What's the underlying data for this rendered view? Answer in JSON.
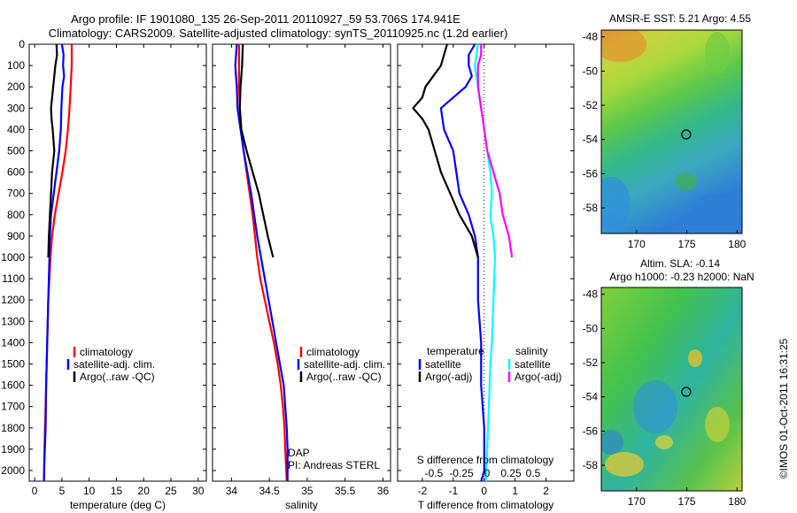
{
  "title_line1": "Argo profile: IF 1901080_135 26-Sep-2011 20110927_59 53.706S 174.941E",
  "title_line2": "Climatology: CARS2009. Satellite-adjusted climatology: synTS_20110925.nc (1.2d earlier)",
  "footer_stamp": "©IMOS 01-Oct-2011 16:31:25",
  "colors": {
    "climatology": "#ff0000",
    "satellite": "#0000ff",
    "argo": "#000000",
    "salinity_satellite": "#00ffff",
    "salinity_argo": "#ff00ff"
  },
  "depth_axis": {
    "ylim": [
      0,
      2050
    ],
    "ticks": [
      0,
      100,
      200,
      300,
      400,
      500,
      600,
      700,
      800,
      900,
      1000,
      1100,
      1200,
      1300,
      1400,
      1500,
      1600,
      1700,
      1800,
      1900,
      2000
    ],
    "inverted": true
  },
  "chart_data": [
    {
      "type": "line",
      "id": "temperature",
      "xlabel": "temperature (deg C)",
      "xlim": [
        -1,
        31.5
      ],
      "xticks": [
        0,
        5,
        10,
        15,
        20,
        25,
        30
      ],
      "legend_position": "lower-right",
      "series": [
        {
          "name": "climatology",
          "color": "#ff0000",
          "points": [
            [
              6.8,
              0
            ],
            [
              6.8,
              100
            ],
            [
              6.6,
              200
            ],
            [
              6.4,
              300
            ],
            [
              6.1,
              400
            ],
            [
              5.7,
              500
            ],
            [
              5.1,
              600
            ],
            [
              4.4,
              700
            ],
            [
              3.7,
              800
            ],
            [
              3.2,
              900
            ],
            [
              2.9,
              1000
            ],
            [
              2.7,
              1100
            ],
            [
              2.5,
              1200
            ],
            [
              2.4,
              1300
            ],
            [
              2.3,
              1400
            ],
            [
              2.2,
              1500
            ],
            [
              2.1,
              1600
            ],
            [
              2.0,
              1700
            ],
            [
              1.9,
              1800
            ],
            [
              1.8,
              1900
            ],
            [
              1.7,
              2050
            ]
          ]
        },
        {
          "name": "satellite-adj. clim.",
          "color": "#0000ff",
          "points": [
            [
              5.0,
              0
            ],
            [
              5.3,
              50
            ],
            [
              5.2,
              100
            ],
            [
              5.4,
              150
            ],
            [
              5.1,
              200
            ],
            [
              5.0,
              250
            ],
            [
              4.9,
              300
            ],
            [
              4.8,
              400
            ],
            [
              4.5,
              500
            ],
            [
              4.0,
              600
            ],
            [
              3.5,
              700
            ],
            [
              3.0,
              800
            ],
            [
              2.8,
              900
            ],
            [
              2.7,
              1000
            ],
            [
              2.5,
              1200
            ],
            [
              2.3,
              1400
            ],
            [
              2.1,
              1600
            ],
            [
              2.0,
              1800
            ],
            [
              1.8,
              1950
            ],
            [
              1.7,
              2050
            ]
          ]
        },
        {
          "name": "Argo(..raw -QC)",
          "color": "#000000",
          "points": [
            [
              4.0,
              0
            ],
            [
              4.1,
              50
            ],
            [
              3.8,
              100
            ],
            [
              3.4,
              200
            ],
            [
              3.0,
              300
            ],
            [
              3.1,
              350
            ],
            [
              3.3,
              400
            ],
            [
              3.6,
              500
            ],
            [
              3.2,
              600
            ],
            [
              3.0,
              700
            ],
            [
              2.8,
              800
            ],
            [
              2.6,
              900
            ],
            [
              2.5,
              1000
            ]
          ]
        }
      ]
    },
    {
      "type": "line",
      "id": "salinity",
      "xlabel": "salinity",
      "xlim": [
        33.75,
        36.1
      ],
      "xticks": [
        34,
        34.5,
        35,
        35.5,
        36
      ],
      "legend_position": "lower-right",
      "annotations": [
        "DAP",
        "PI: Andreas STERL"
      ],
      "series": [
        {
          "name": "climatology",
          "color": "#ff0000",
          "points": [
            [
              34.1,
              0
            ],
            [
              34.1,
              100
            ],
            [
              34.1,
              200
            ],
            [
              34.11,
              300
            ],
            [
              34.13,
              400
            ],
            [
              34.16,
              500
            ],
            [
              34.2,
              600
            ],
            [
              34.24,
              700
            ],
            [
              34.28,
              800
            ],
            [
              34.31,
              900
            ],
            [
              34.34,
              1000
            ],
            [
              34.38,
              1100
            ],
            [
              34.44,
              1200
            ],
            [
              34.5,
              1300
            ],
            [
              34.56,
              1400
            ],
            [
              34.61,
              1500
            ],
            [
              34.65,
              1600
            ],
            [
              34.68,
              1700
            ],
            [
              34.7,
              1800
            ],
            [
              34.71,
              1900
            ],
            [
              34.73,
              2050
            ]
          ]
        },
        {
          "name": "satellite-adj. clim.",
          "color": "#0000ff",
          "points": [
            [
              34.07,
              0
            ],
            [
              34.05,
              100
            ],
            [
              34.06,
              150
            ],
            [
              34.07,
              200
            ],
            [
              34.08,
              300
            ],
            [
              34.12,
              400
            ],
            [
              34.16,
              500
            ],
            [
              34.21,
              600
            ],
            [
              34.26,
              700
            ],
            [
              34.3,
              800
            ],
            [
              34.34,
              900
            ],
            [
              34.39,
              1000
            ],
            [
              34.44,
              1100
            ],
            [
              34.49,
              1200
            ],
            [
              34.54,
              1300
            ],
            [
              34.59,
              1400
            ],
            [
              34.64,
              1500
            ],
            [
              34.69,
              1600
            ],
            [
              34.71,
              1700
            ],
            [
              34.73,
              1800
            ],
            [
              34.74,
              1900
            ],
            [
              34.74,
              2050
            ]
          ]
        },
        {
          "name": "Argo(..raw -QC)",
          "color": "#000000",
          "points": [
            [
              34.15,
              0
            ],
            [
              34.14,
              100
            ],
            [
              34.12,
              200
            ],
            [
              34.11,
              300
            ],
            [
              34.13,
              400
            ],
            [
              34.2,
              500
            ],
            [
              34.28,
              600
            ],
            [
              34.36,
              700
            ],
            [
              34.42,
              800
            ],
            [
              34.48,
              900
            ],
            [
              34.55,
              1000
            ]
          ]
        }
      ]
    },
    {
      "type": "line",
      "id": "difference",
      "xlabel": "T difference from climatology",
      "xlim": [
        -2.8,
        2.9
      ],
      "xticks": [
        -2,
        -1,
        0,
        1,
        2
      ],
      "secondary_xlabel": "S difference from climatology",
      "secondary_xticks": [
        "-0.5",
        "-0.25",
        "0",
        "0.25",
        "0.5"
      ],
      "legend_position": "lower",
      "legend_titles": [
        "temperature",
        "salinity"
      ],
      "series": [
        {
          "name": "satellite",
          "group": "temperature",
          "color": "#0000ff",
          "points": [
            [
              -0.3,
              0
            ],
            [
              -0.5,
              50
            ],
            [
              -0.5,
              100
            ],
            [
              -0.4,
              150
            ],
            [
              -0.6,
              200
            ],
            [
              -1.4,
              300
            ],
            [
              -1.3,
              400
            ],
            [
              -1.0,
              500
            ],
            [
              -0.8,
              700
            ],
            [
              -0.5,
              800
            ],
            [
              -0.3,
              900
            ],
            [
              -0.2,
              1000
            ],
            [
              -0.2,
              1200
            ],
            [
              -0.1,
              1400
            ],
            [
              -0.1,
              1600
            ],
            [
              0.0,
              1800
            ],
            [
              0.0,
              2000
            ],
            [
              -0.1,
              2050
            ]
          ]
        },
        {
          "name": "Argo(-adj)",
          "group": "temperature",
          "color": "#000000",
          "points": [
            [
              -1.2,
              0
            ],
            [
              -1.3,
              50
            ],
            [
              -1.4,
              100
            ],
            [
              -1.9,
              200
            ],
            [
              -2.0,
              250
            ],
            [
              -2.3,
              300
            ],
            [
              -2.0,
              350
            ],
            [
              -1.8,
              400
            ],
            [
              -1.6,
              500
            ],
            [
              -1.4,
              600
            ],
            [
              -1.1,
              700
            ],
            [
              -0.8,
              800
            ],
            [
              -0.4,
              900
            ],
            [
              -0.2,
              1000
            ]
          ]
        },
        {
          "name": "satellite",
          "group": "salinity",
          "color": "#00ffff",
          "points": [
            [
              -0.2,
              0
            ],
            [
              -0.3,
              100
            ],
            [
              -0.2,
              200
            ],
            [
              -0.1,
              300
            ],
            [
              0.0,
              400
            ],
            [
              0.1,
              500
            ],
            [
              0.2,
              600
            ],
            [
              0.25,
              700
            ],
            [
              0.2,
              800
            ],
            [
              0.3,
              900
            ],
            [
              0.35,
              1000
            ],
            [
              0.3,
              1200
            ],
            [
              0.25,
              1400
            ],
            [
              0.2,
              1500
            ],
            [
              0.15,
              1700
            ],
            [
              0.1,
              1900
            ],
            [
              0.05,
              2050
            ]
          ]
        },
        {
          "name": "Argo(-adj)",
          "group": "salinity",
          "color": "#ff00ff",
          "points": [
            [
              -0.1,
              0
            ],
            [
              -0.1,
              50
            ],
            [
              -0.2,
              100
            ],
            [
              -0.2,
              200
            ],
            [
              -0.1,
              300
            ],
            [
              0.0,
              400
            ],
            [
              0.1,
              500
            ],
            [
              0.3,
              600
            ],
            [
              0.5,
              700
            ],
            [
              0.6,
              800
            ],
            [
              0.8,
              900
            ],
            [
              0.9,
              1000
            ]
          ]
        }
      ]
    },
    {
      "type": "heatmap",
      "id": "sst-map",
      "title": "AMSR-E SST: 5.21  Argo: 4.55",
      "xlim": [
        166.5,
        180.5
      ],
      "ylim": [
        -59.5,
        -47.6
      ],
      "xticks": [
        170,
        175,
        180
      ],
      "yticks": [
        -48,
        -50,
        -52,
        -54,
        -56,
        -58
      ],
      "profile_marker": [
        174.941,
        -53.706
      ]
    },
    {
      "type": "heatmap",
      "id": "sla-map",
      "title_line1": "Altim. SLA: -0.14",
      "title_line2": "Argo h1000: -0.23 h2000: NaN",
      "xlim": [
        166.5,
        180.5
      ],
      "ylim": [
        -59.5,
        -47.6
      ],
      "xticks": [
        170,
        175,
        180
      ],
      "yticks": [
        -48,
        -50,
        -52,
        -54,
        -56,
        -58
      ],
      "profile_marker": [
        174.941,
        -53.706
      ]
    }
  ]
}
